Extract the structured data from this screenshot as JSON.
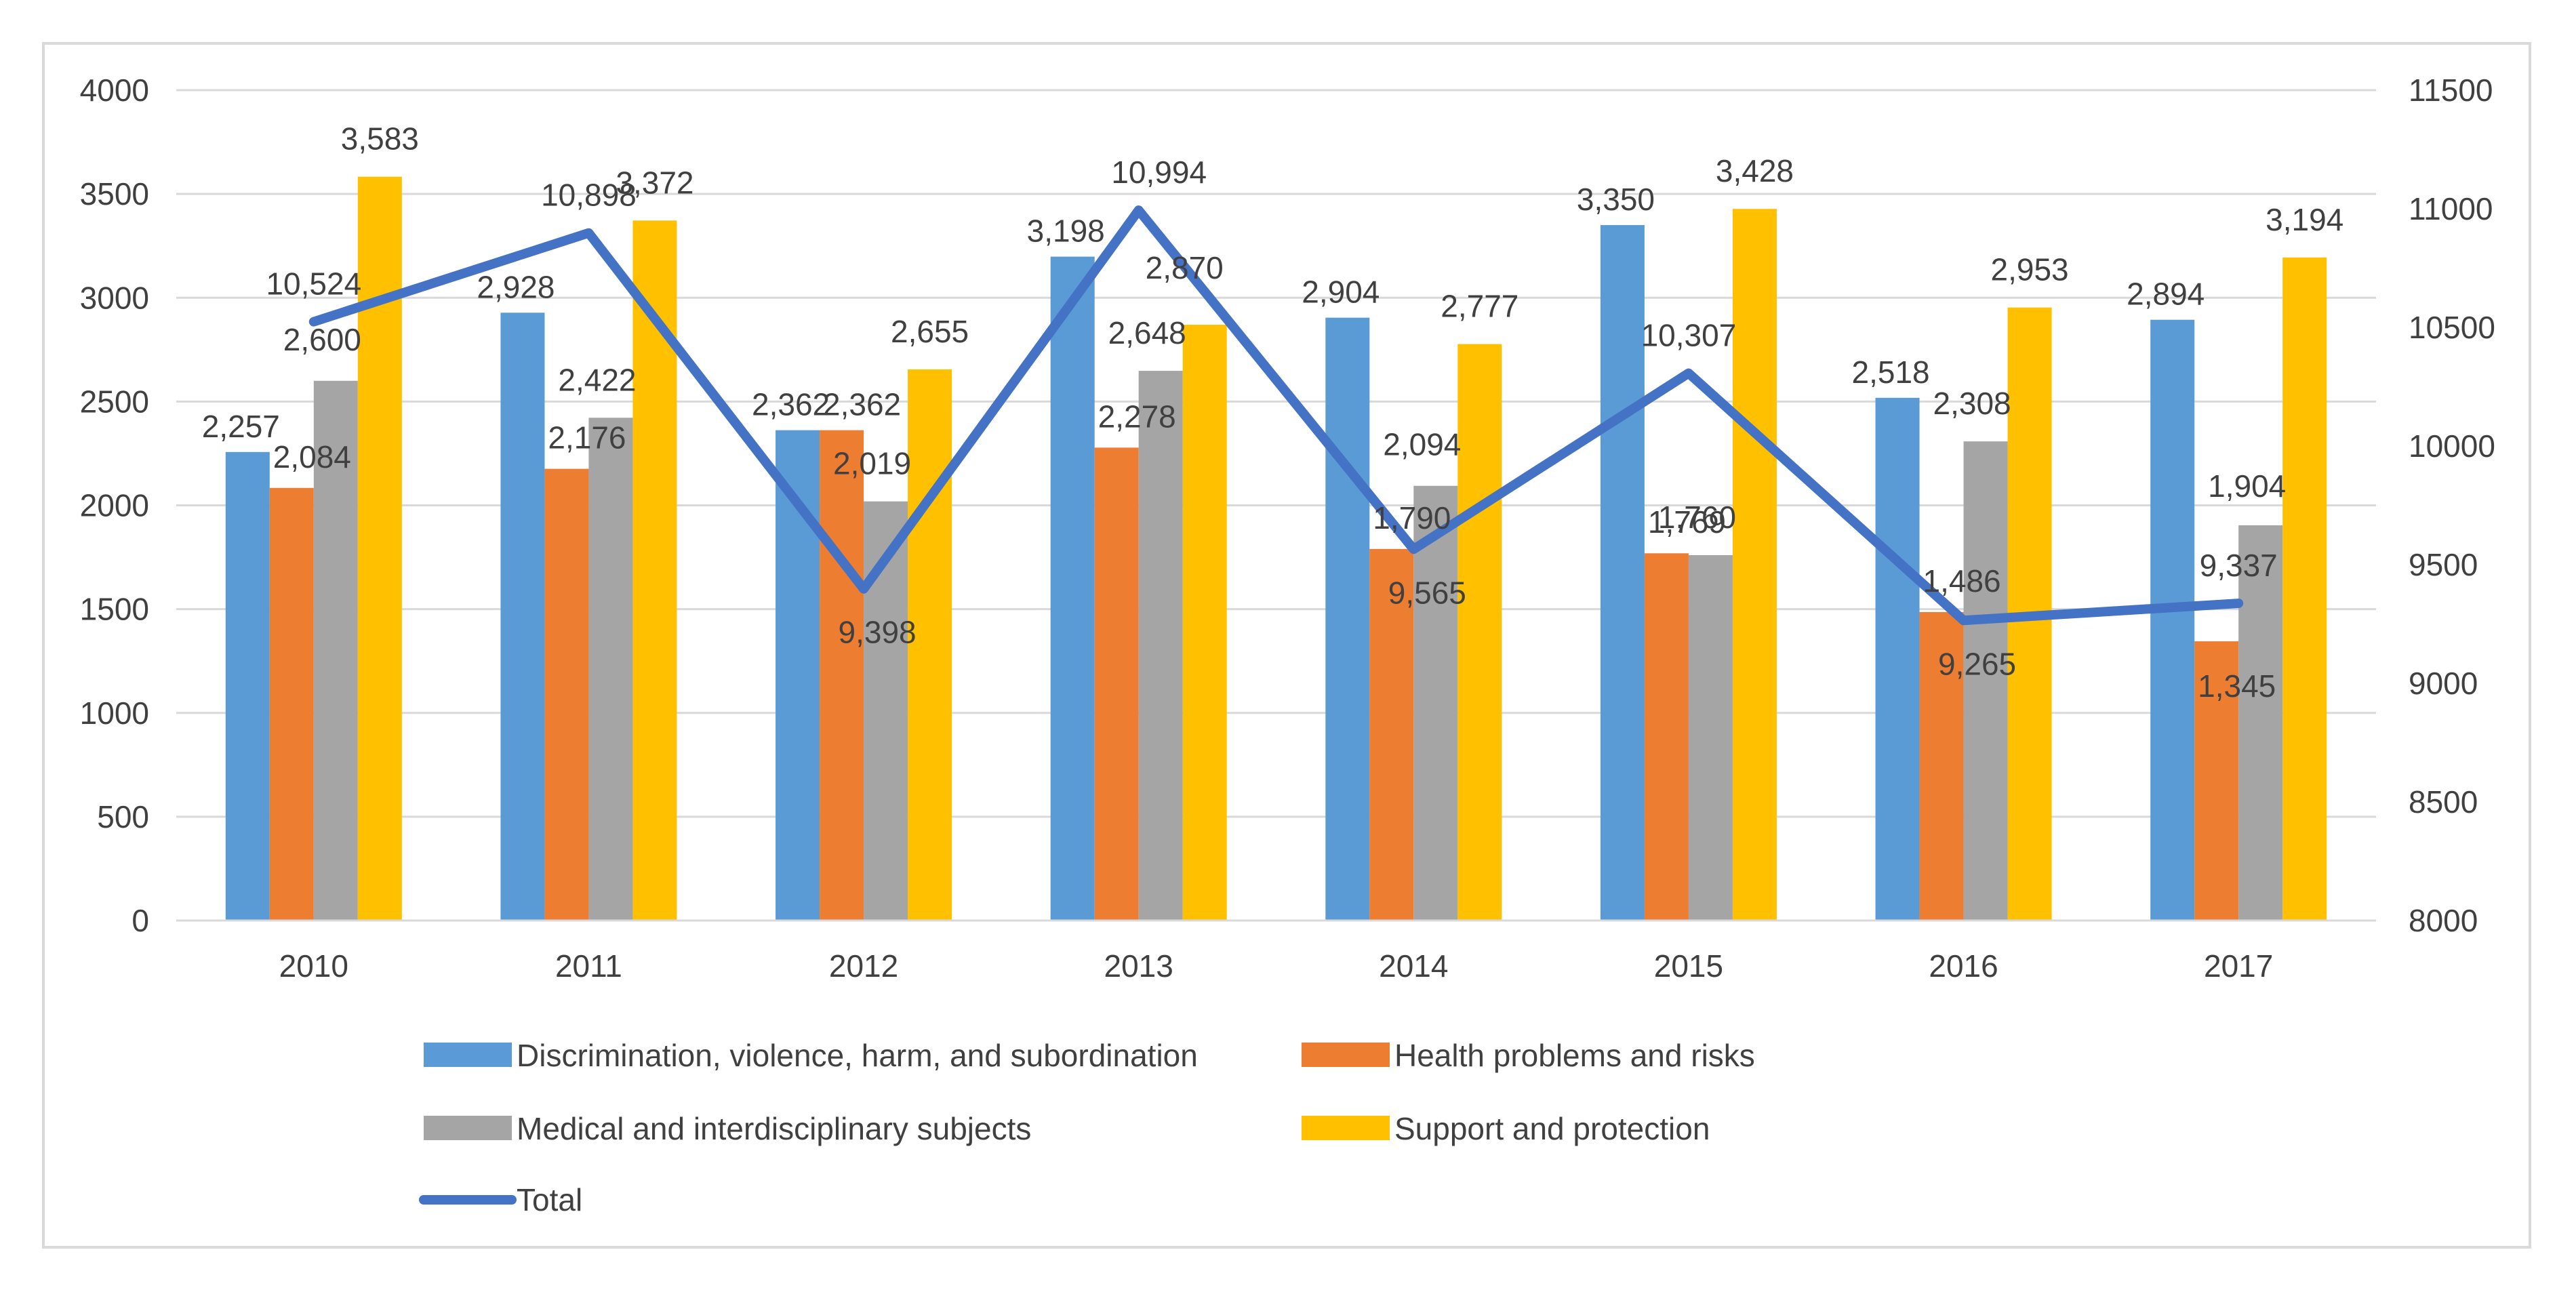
{
  "chart_data": {
    "type": "bar",
    "categories": [
      "2010",
      "2011",
      "2012",
      "2013",
      "2014",
      "2015",
      "2016",
      "2017"
    ],
    "series": [
      {
        "name": "Discrimination, violence, harm, and subordination",
        "kind": "bar",
        "axis": "left",
        "color": "#5b9bd5",
        "values": [
          2257,
          2928,
          2362,
          3198,
          2904,
          3350,
          2518,
          2894
        ],
        "labels": [
          "2,257",
          "2,928",
          "2,362",
          "3,198",
          "2,904",
          "3,350",
          "2,518",
          "2,894"
        ]
      },
      {
        "name": "Health problems and risks",
        "kind": "bar",
        "axis": "left",
        "color": "#ed7d31",
        "values": [
          2084,
          2176,
          2362,
          2278,
          1790,
          1769,
          1486,
          1345
        ],
        "labels": [
          "2,084",
          "2,176",
          "2,362",
          "2,278",
          "1,790",
          "1,769",
          "1,486",
          "1,345"
        ]
      },
      {
        "name": "Medical and interdisciplinary subjects",
        "kind": "bar",
        "axis": "left",
        "color": "#a5a5a5",
        "values": [
          2600,
          2422,
          2019,
          2648,
          2094,
          1760,
          2308,
          1904
        ],
        "labels": [
          "2,600",
          "2,422",
          "2,019",
          "2,648",
          "2,094",
          "1,760",
          "2,308",
          "1,904"
        ]
      },
      {
        "name": "Support and protection",
        "kind": "bar",
        "axis": "left",
        "color": "#ffc000",
        "values": [
          3583,
          3372,
          2655,
          2870,
          2777,
          3428,
          2953,
          3194
        ],
        "labels": [
          "3,583",
          "3,372",
          "2,655",
          "2,870",
          "2,777",
          "3,428",
          "2,953",
          "3,194"
        ]
      },
      {
        "name": "Total",
        "kind": "line",
        "axis": "right",
        "color": "#4472c4",
        "values": [
          10524,
          10898,
          9398,
          10994,
          9565,
          10307,
          9265,
          9337
        ],
        "labels": [
          "10,524",
          "10,898",
          "9,398",
          "10,994",
          "9,565",
          "10,307",
          "9,265",
          "9,337"
        ]
      }
    ],
    "ylim": [
      0,
      4000
    ],
    "yticks": [
      "0",
      "500",
      "1000",
      "1500",
      "2000",
      "2500",
      "3000",
      "3500",
      "4000"
    ],
    "y2lim": [
      8000,
      11500
    ],
    "y2ticks": [
      "8000",
      "8500",
      "9000",
      "9500",
      "10000",
      "10500",
      "11000",
      "11500"
    ],
    "gridlines": true,
    "legend_position": "bottom"
  }
}
